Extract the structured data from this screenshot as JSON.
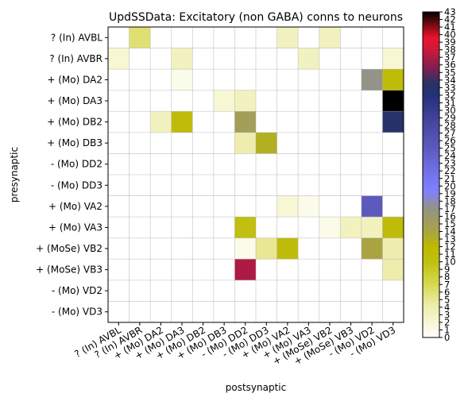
{
  "chart_data": {
    "type": "heatmap",
    "title": "UpdSSData: Excitatory (non GABA) conns to neurons",
    "xlabel": "postsynaptic",
    "ylabel": "presynaptic",
    "rows": [
      "? (In) AVBL",
      "? (In) AVBR",
      "+ (Mo) DA2",
      "+ (Mo) DA3",
      "+ (Mo) DB2",
      "+ (Mo) DB3",
      "- (Mo) DD2",
      "- (Mo) DD3",
      "+ (Mo) VA2",
      "+ (Mo) VA3",
      "+ (MoSe) VB2",
      "+ (MoSe) VB3",
      "- (Mo) VD2",
      "- (Mo) VD3"
    ],
    "columns": [
      "? (In) AVBL",
      "? (In) AVBR",
      "+ (Mo) DA2",
      "+ (Mo) DA3",
      "+ (Mo) DB2",
      "+ (Mo) DB3",
      "- (Mo) DD2",
      "- (Mo) DD3",
      "+ (Mo) VA2",
      "+ (Mo) VA3",
      "+ (MoSe) VB2",
      "+ (MoSe) VB3",
      "- (Mo) VD2",
      "- (Mo) VD3"
    ],
    "values": [
      [
        0,
        6,
        0,
        0,
        0,
        0,
        0,
        0,
        3,
        0,
        3,
        0,
        0,
        0
      ],
      [
        2,
        0,
        0,
        3,
        0,
        0,
        0,
        0,
        0,
        3,
        0,
        0,
        0,
        2
      ],
      [
        0,
        0,
        0,
        1,
        0,
        0,
        0,
        0,
        0,
        0,
        0,
        0,
        17,
        11
      ],
      [
        0,
        0,
        0,
        0,
        0,
        2,
        3,
        0,
        0,
        0,
        0,
        0,
        0,
        43
      ],
      [
        0,
        0,
        3,
        11,
        0,
        0,
        15,
        0,
        0,
        0,
        0,
        0,
        0,
        33
      ],
      [
        0,
        0,
        0,
        0,
        0,
        0,
        4,
        13,
        0,
        0,
        0,
        0,
        0,
        0
      ],
      [
        0,
        0,
        0,
        0,
        0,
        0,
        0,
        0,
        0,
        0,
        0,
        0,
        0,
        0
      ],
      [
        0,
        0,
        0,
        0,
        0,
        0,
        0,
        0,
        0,
        0,
        0,
        0,
        0,
        0
      ],
      [
        0,
        0,
        0,
        0,
        0,
        0,
        0,
        0,
        2,
        1,
        0,
        0,
        25,
        0
      ],
      [
        0,
        0,
        0,
        0,
        0,
        0,
        10,
        0,
        0,
        0,
        1,
        3,
        3,
        11
      ],
      [
        0,
        0,
        0,
        0,
        0,
        0,
        1,
        5,
        11,
        0,
        0,
        0,
        14,
        4
      ],
      [
        0,
        0,
        0,
        0,
        0,
        0,
        37,
        0,
        0,
        0,
        0,
        0,
        0,
        4
      ],
      [
        0,
        0,
        0,
        0,
        0,
        0,
        0,
        0,
        0,
        0,
        0,
        0,
        0,
        0
      ],
      [
        0,
        0,
        0,
        0,
        0,
        0,
        0,
        0,
        0,
        0,
        0,
        0,
        0,
        0
      ]
    ],
    "vmin": 0,
    "vmax": 43,
    "colorbar_ticks": [
      0,
      1,
      2,
      3,
      4,
      5,
      6,
      7,
      8,
      9,
      10,
      11,
      12,
      13,
      14,
      15,
      16,
      17,
      18,
      19,
      20,
      21,
      22,
      23,
      24,
      25,
      26,
      27,
      28,
      29,
      30,
      31,
      32,
      33,
      34,
      35,
      36,
      37,
      38,
      39,
      40,
      41,
      42,
      43
    ],
    "colormap": "gist_stern_r-like",
    "grid": true
  }
}
